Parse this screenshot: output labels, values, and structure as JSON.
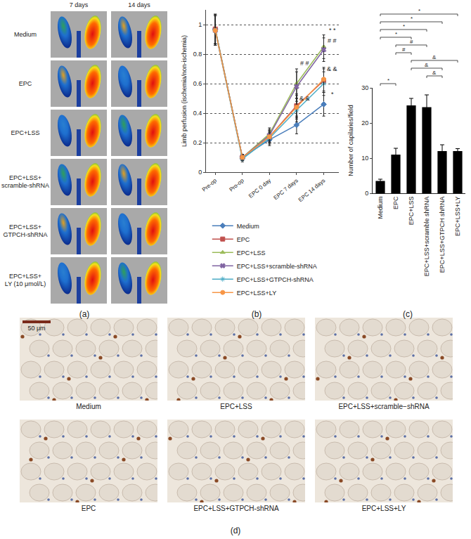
{
  "panel_labels": [
    "(a)",
    "(b)",
    "(c)",
    "(d)"
  ],
  "panel_a": {
    "columns": [
      "7 days",
      "14 days"
    ],
    "rows": [
      [
        "Medium"
      ],
      [
        "EPC"
      ],
      [
        "EPC+LSS"
      ],
      [
        "EPC+LSS+",
        "scramble-shRNA"
      ],
      [
        "EPC+LSS+",
        "GTPCH-shRNA"
      ],
      [
        "EPC+LSS+",
        "LY (10 μmol/L)"
      ]
    ]
  },
  "chart_data": [
    {
      "type": "line",
      "ylabel": "Limb perfusion (ischemia/non-ischemia)",
      "categories": [
        "Pre-op",
        "Pro-op",
        "EPC 0 day",
        "EPC 7 days",
        "EPC 14 days"
      ],
      "ylim": [
        0,
        1.1
      ],
      "yticks": [
        0,
        0.2,
        0.4,
        0.6,
        0.8,
        1
      ],
      "grid": true,
      "legend": "bottom",
      "series": [
        {
          "name": "Medium",
          "color": "#4a7ebb",
          "marker": "diamond",
          "values": [
            0.97,
            0.1,
            0.22,
            0.32,
            0.46
          ],
          "errors": [
            0.1,
            0.02,
            0.04,
            0.06,
            0.08
          ]
        },
        {
          "name": "EPC",
          "color": "#c0504d",
          "marker": "square",
          "values": [
            0.97,
            0.1,
            0.24,
            0.45,
            0.62
          ],
          "errors": [
            0.1,
            0.02,
            0.04,
            0.08,
            0.08
          ]
        },
        {
          "name": "EPC+LSS",
          "color": "#9bbb59",
          "marker": "triangle",
          "values": [
            0.97,
            0.1,
            0.26,
            0.6,
            0.85
          ],
          "errors": [
            0.1,
            0.02,
            0.04,
            0.1,
            0.08
          ]
        },
        {
          "name": "EPC+LSS+scramble-shRNA",
          "color": "#8064a2",
          "marker": "x",
          "values": [
            0.96,
            0.1,
            0.25,
            0.58,
            0.83
          ],
          "errors": [
            0.1,
            0.02,
            0.04,
            0.1,
            0.08
          ]
        },
        {
          "name": "EPC+LSS+GTPCH-shRNA",
          "color": "#4bacc6",
          "marker": "star",
          "values": [
            0.96,
            0.09,
            0.23,
            0.42,
            0.6
          ],
          "errors": [
            0.1,
            0.02,
            0.04,
            0.08,
            0.08
          ]
        },
        {
          "name": "EPC+LSS+LY",
          "color": "#f79646",
          "marker": "circle",
          "values": [
            0.96,
            0.1,
            0.24,
            0.44,
            0.63
          ],
          "errors": [
            0.1,
            0.02,
            0.04,
            0.08,
            0.08
          ]
        }
      ],
      "annotations": [
        {
          "x": "EPC 7 days",
          "y": 0.74,
          "text": "# #"
        },
        {
          "x": "EPC 7 days",
          "y": 0.5,
          "text": "& &"
        },
        {
          "x": "EPC 14 days",
          "y": 0.96,
          "text": "* *"
        },
        {
          "x": "EPC 14 days",
          "y": 0.89,
          "text": "# #"
        },
        {
          "x": "EPC 14 days",
          "y": 0.7,
          "text": "& &"
        },
        {
          "x": "EPC 14 days",
          "y": 0.53,
          "text": "*"
        }
      ]
    },
    {
      "type": "bar",
      "ylabel": "Number of capilaries/field",
      "categories": [
        "Medium",
        "EPC",
        "EPC+LSS",
        "EPC+LSS+scramble shRNA",
        "EPC+LSS+GTPCH shRNA",
        "EPC+LSS+LY"
      ],
      "values": [
        3.5,
        11,
        25,
        24.5,
        12,
        12
      ],
      "errors": [
        0.5,
        1.8,
        2,
        3.5,
        1.8,
        0.7
      ],
      "color": "#000000",
      "ylim": [
        0,
        30
      ],
      "yticks": [
        0,
        10,
        20,
        30
      ],
      "comparisons": [
        {
          "from": "Medium",
          "to": "EPC",
          "label": "*"
        },
        {
          "from": "EPC+LSS+scramble shRNA",
          "to": "EPC+LSS+GTPCH shRNA",
          "label": "&"
        },
        {
          "from": "EPC+LSS",
          "to": "EPC+LSS+GTPCH shRNA",
          "label": "&"
        },
        {
          "from": "EPC+LSS",
          "to": "EPC+LSS+LY",
          "label": "&"
        },
        {
          "from": "EPC",
          "to": "EPC+LSS",
          "label": "#"
        },
        {
          "from": "EPC",
          "to": "EPC+LSS+scramble shRNA",
          "label": "#"
        },
        {
          "from": "Medium",
          "to": "EPC+LSS",
          "label": "*"
        },
        {
          "from": "Medium",
          "to": "EPC+LSS+scramble shRNA",
          "label": "*"
        },
        {
          "from": "Medium",
          "to": "EPC+LSS+GTPCH shRNA",
          "label": "*"
        },
        {
          "from": "Medium",
          "to": "EPC+LSS+LY",
          "label": "*"
        }
      ]
    }
  ],
  "panel_d": {
    "scale_bar": "50 μm",
    "images": [
      "Medium",
      "EPC+LSS",
      "EPC+LSS+scramble−shRNA",
      "EPC",
      "EPC+LSS+GTPCH-shRNA",
      "EPC+LSS+LY"
    ]
  }
}
